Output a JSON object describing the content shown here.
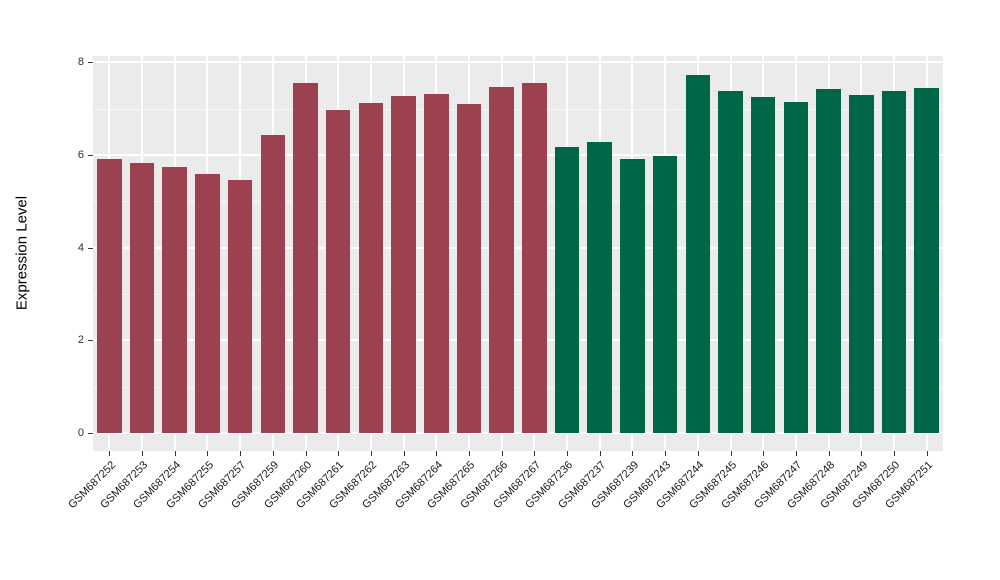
{
  "chart_data": {
    "type": "bar",
    "title": "",
    "xlabel": "",
    "ylabel": "Expression Level",
    "ylim": [
      0,
      8.15
    ],
    "yticks": [
      0,
      2,
      4,
      6,
      8
    ],
    "grid": true,
    "legend": "none",
    "categories": [
      "GSM687252",
      "GSM687253",
      "GSM687254",
      "GSM687255",
      "GSM687257",
      "GSM687259",
      "GSM687260",
      "GSM687261",
      "GSM687262",
      "GSM687263",
      "GSM687264",
      "GSM687265",
      "GSM687266",
      "GSM687267",
      "GSM687236",
      "GSM687237",
      "GSM687239",
      "GSM687243",
      "GSM687244",
      "GSM687245",
      "GSM687246",
      "GSM687247",
      "GSM687248",
      "GSM687249",
      "GSM687250",
      "GSM687251"
    ],
    "values": [
      5.92,
      5.82,
      5.73,
      5.58,
      5.47,
      6.42,
      7.56,
      6.98,
      7.12,
      7.28,
      7.31,
      7.1,
      7.46,
      7.55,
      6.18,
      6.28,
      5.92,
      5.98,
      7.72,
      7.39,
      7.24,
      7.15,
      7.42,
      7.3,
      7.39,
      7.44
    ],
    "colors": [
      "#9B4150",
      "#9B4150",
      "#9B4150",
      "#9B4150",
      "#9B4150",
      "#9B4150",
      "#9B4150",
      "#9B4150",
      "#9B4150",
      "#9B4150",
      "#9B4150",
      "#9B4150",
      "#9B4150",
      "#9B4150",
      "#006648",
      "#006648",
      "#006648",
      "#006648",
      "#006648",
      "#006648",
      "#006648",
      "#006648",
      "#006648",
      "#006648",
      "#006648",
      "#006648"
    ],
    "group_colors": {
      "left_group_maroon": "#9B4150",
      "right_group_green": "#006648"
    }
  },
  "style": {
    "panel_bg": "#EBEBEB",
    "grid_color": "#FFFFFF",
    "axis_text_color": "#303030",
    "background": "#FFFFFF"
  }
}
